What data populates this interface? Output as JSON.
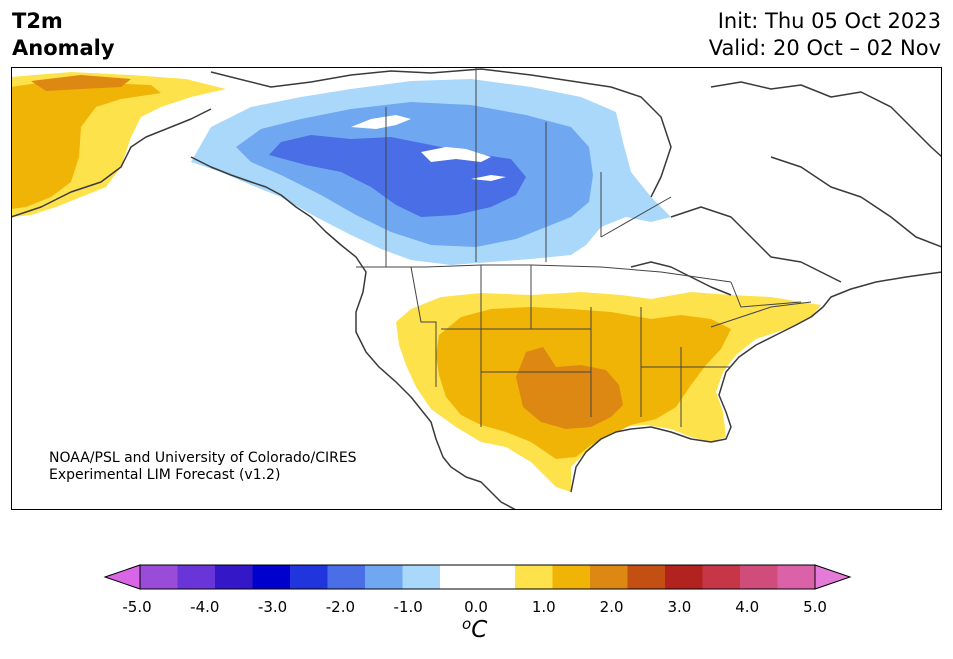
{
  "header": {
    "title_line1": "T2m",
    "title_line2": "Anomaly",
    "init": "Init: Thu 05 Oct 2023",
    "valid": "Valid: 20 Oct – 02 Nov"
  },
  "credit": {
    "line1": "NOAA/PSL and University of Colorado/CIRES",
    "line2": "Experimental LIM Forecast (v1.2)"
  },
  "colorbar": {
    "unit_base": "C",
    "unit_sup": "o",
    "ticks": [
      "-5.0",
      "-4.0",
      "-3.0",
      "-2.0",
      "-1.0",
      "0.0",
      "1.0",
      "2.0",
      "3.0",
      "4.0",
      "5.0"
    ],
    "colors": [
      "#d966e6",
      "#9a4bd8",
      "#6a35d8",
      "#3418c8",
      "#0000cc",
      "#2035dc",
      "#4a6ee6",
      "#6fa8f0",
      "#a9d8fa",
      "#ffffff",
      "#ffffff",
      "#fde24b",
      "#f0b407",
      "#dd8812",
      "#c44f13",
      "#b2221f",
      "#c73647",
      "#d04c7a",
      "#db62a8",
      "#e57bd8"
    ]
  },
  "map": {
    "region": "North America",
    "colors": {
      "light_blue": "#a9d8fa",
      "mid_blue": "#6fa8f0",
      "dark_blue": "#4a6ee6",
      "yellow": "#fde24b",
      "gold": "#f0b407",
      "orange": "#dd8812"
    }
  }
}
